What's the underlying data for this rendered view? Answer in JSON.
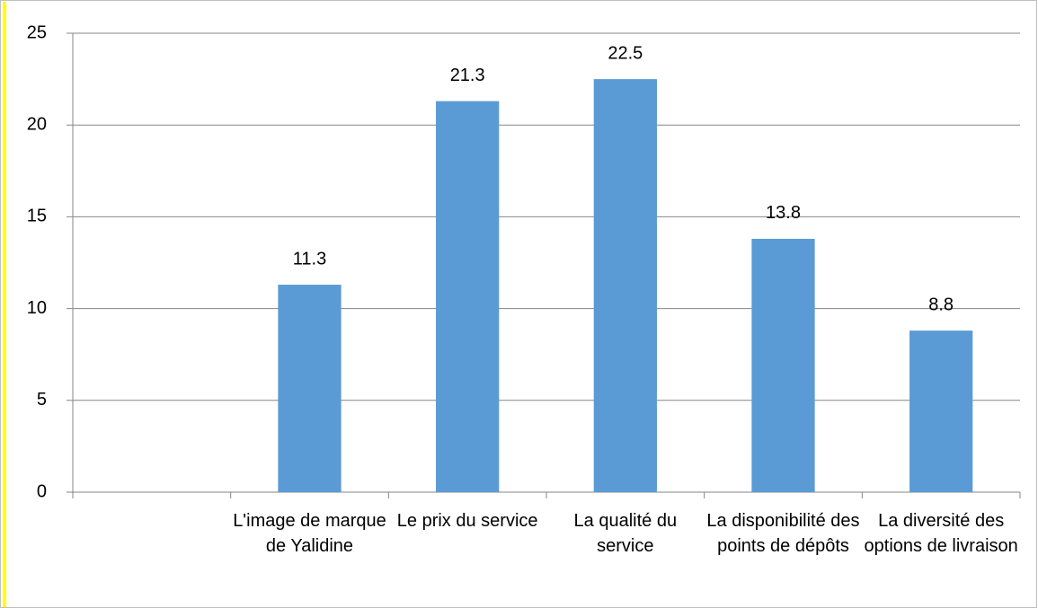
{
  "chart_data": {
    "type": "bar",
    "categories": [
      null,
      "L'image de marque de Yalidine",
      "Le prix du service",
      "La qualité du service",
      "La disponibilité des points de dépôts",
      "La diversité des options de livraison"
    ],
    "values": [
      null,
      11.3,
      21.3,
      22.5,
      13.8,
      8.8
    ],
    "color": "#5b9bd5",
    "ylim": [
      0,
      25
    ],
    "yticks": [
      0,
      5,
      10,
      15,
      20,
      25
    ],
    "grid": true
  }
}
